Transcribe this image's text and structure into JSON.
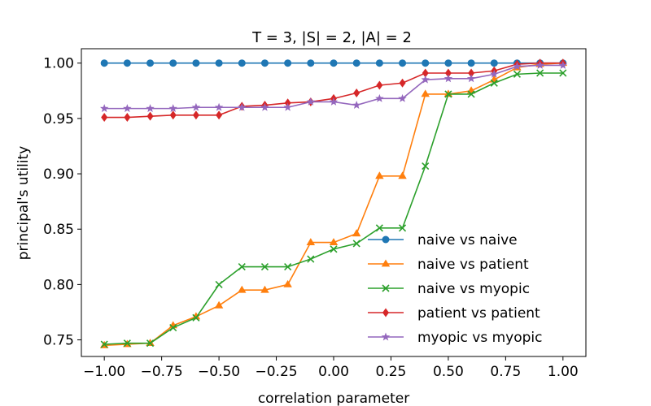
{
  "chart_data": {
    "type": "line",
    "title": "T = 3, |S| = 2, |A| = 2",
    "xlabel": "correlation parameter",
    "ylabel": "principal's utility",
    "xlim": [
      -1.1,
      1.1
    ],
    "ylim": [
      0.735,
      1.013
    ],
    "xticks": [
      -1.0,
      -0.75,
      -0.5,
      -0.25,
      0.0,
      0.25,
      0.5,
      0.75,
      1.0
    ],
    "xtick_labels": [
      "−1.00",
      "−0.75",
      "−0.50",
      "−0.25",
      "0.00",
      "0.25",
      "0.50",
      "0.75",
      "1.00"
    ],
    "yticks": [
      0.75,
      0.8,
      0.85,
      0.9,
      0.95,
      1.0
    ],
    "ytick_labels": [
      "0.75",
      "0.80",
      "0.85",
      "0.90",
      "0.95",
      "1.00"
    ],
    "grid": false,
    "legend_position": "lower-right",
    "x": [
      -1.0,
      -0.9,
      -0.8,
      -0.7,
      -0.6,
      -0.5,
      -0.4,
      -0.3,
      -0.2,
      -0.1,
      0.0,
      0.1,
      0.2,
      0.3,
      0.4,
      0.5,
      0.6,
      0.7,
      0.8,
      0.9,
      1.0
    ],
    "series": [
      {
        "name": "naive vs naive",
        "color": "#1f77b4",
        "marker": "circle",
        "values": [
          1.0,
          1.0,
          1.0,
          1.0,
          1.0,
          1.0,
          1.0,
          1.0,
          1.0,
          1.0,
          1.0,
          1.0,
          1.0,
          1.0,
          1.0,
          1.0,
          1.0,
          1.0,
          1.0,
          1.0,
          1.0
        ]
      },
      {
        "name": "naive vs patient",
        "color": "#ff7f0e",
        "marker": "triangle",
        "values": [
          0.745,
          0.746,
          0.747,
          0.763,
          0.771,
          0.781,
          0.795,
          0.795,
          0.8,
          0.838,
          0.838,
          0.846,
          0.898,
          0.898,
          0.972,
          0.972,
          0.975,
          0.985,
          0.996,
          0.999,
          1.0
        ]
      },
      {
        "name": "naive vs myopic",
        "color": "#2ca02c",
        "marker": "x",
        "values": [
          0.746,
          0.747,
          0.747,
          0.761,
          0.77,
          0.8,
          0.816,
          0.816,
          0.816,
          0.823,
          0.832,
          0.837,
          0.851,
          0.851,
          0.907,
          0.972,
          0.972,
          0.982,
          0.99,
          0.991,
          0.991
        ]
      },
      {
        "name": "patient vs patient",
        "color": "#d62728",
        "marker": "diamond",
        "values": [
          0.951,
          0.951,
          0.952,
          0.953,
          0.953,
          0.953,
          0.961,
          0.962,
          0.964,
          0.965,
          0.968,
          0.973,
          0.98,
          0.982,
          0.991,
          0.991,
          0.991,
          0.993,
          0.999,
          1.0,
          1.0
        ]
      },
      {
        "name": "myopic vs myopic",
        "color": "#9467bd",
        "marker": "star",
        "values": [
          0.959,
          0.959,
          0.959,
          0.959,
          0.96,
          0.96,
          0.96,
          0.96,
          0.96,
          0.965,
          0.965,
          0.962,
          0.968,
          0.968,
          0.985,
          0.986,
          0.986,
          0.99,
          0.997,
          0.998,
          0.998
        ]
      }
    ]
  }
}
